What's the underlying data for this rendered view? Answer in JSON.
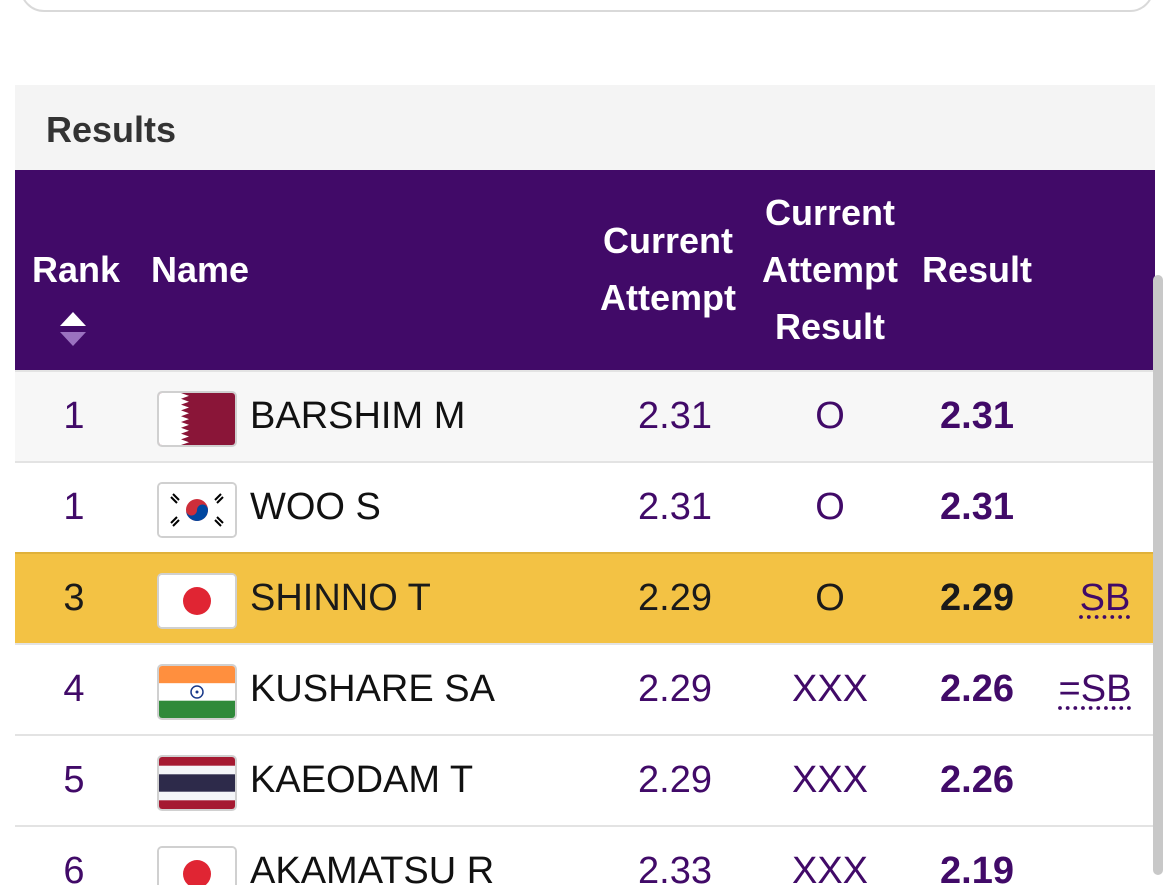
{
  "results_title": "Results",
  "columns": {
    "rank": "Rank",
    "name": "Name",
    "current_attempt": "Current Attempt",
    "current_attempt_result": "Current Attempt Result",
    "result": "Result"
  },
  "rows": [
    {
      "rank": "1",
      "flag": "qatar-flag-icon",
      "name": "BARSHIM M",
      "current_attempt": "2.31",
      "attempt_result": "O",
      "result": "2.31",
      "note": ""
    },
    {
      "rank": "1",
      "flag": "korea-flag-icon",
      "name": "WOO S",
      "current_attempt": "2.31",
      "attempt_result": "O",
      "result": "2.31",
      "note": ""
    },
    {
      "rank": "3",
      "flag": "japan-flag-icon",
      "name": "SHINNO T",
      "current_attempt": "2.29",
      "attempt_result": "O",
      "result": "2.29",
      "note": "SB"
    },
    {
      "rank": "4",
      "flag": "india-flag-icon",
      "name": "KUSHARE SA",
      "current_attempt": "2.29",
      "attempt_result": "XXX",
      "result": "2.26",
      "note": "=SB"
    },
    {
      "rank": "5",
      "flag": "thailand-flag-icon",
      "name": "KAEODAM T",
      "current_attempt": "2.29",
      "attempt_result": "XXX",
      "result": "2.26",
      "note": ""
    },
    {
      "rank": "6",
      "flag": "japan-flag-icon",
      "name": "AKAMATSU R",
      "current_attempt": "2.33",
      "attempt_result": "XXX",
      "result": "2.19",
      "note": ""
    }
  ],
  "colors": {
    "header_bg": "#410a68",
    "highlight_row": "#f3c244",
    "text_purple": "#410a68"
  }
}
